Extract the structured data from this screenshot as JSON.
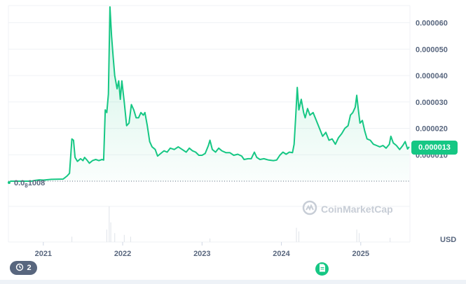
{
  "colors": {
    "line": "#16c784",
    "grid": "#eff2f5",
    "text": "#58667e",
    "volume": "#dfe3e9",
    "dotted": "#58667e"
  },
  "chart_data": {
    "type": "area",
    "currency_label": "USD",
    "current_price_label": "0.000013",
    "start_label": {
      "prefix": "0.0",
      "subscript": "8",
      "suffix": "1008"
    },
    "y_ticks": [
      "0.000060",
      "0.000050",
      "0.000040",
      "0.000030",
      "0.000020",
      "0.000010"
    ],
    "y_tick_values": [
      6e-05,
      5e-05,
      4e-05,
      3e-05,
      2e-05,
      1e-05
    ],
    "x_ticks": [
      "2021",
      "2022",
      "2023",
      "2024",
      "2025"
    ],
    "x_tick_values": [
      2021.0,
      2022.0,
      2023.0,
      2024.0,
      2025.0
    ],
    "xlim": [
      2020.56,
      2025.62
    ],
    "ylim": [
      0,
      6.65e-05
    ],
    "dotted_reference_value": 0.0,
    "series": [
      {
        "values": [
          [
            2020.58,
            0.0
          ],
          [
            2020.85,
            0.0
          ],
          [
            2020.9,
            3e-07
          ],
          [
            2020.95,
            5e-07
          ],
          [
            2021.0,
            4e-07
          ],
          [
            2021.1,
            7e-07
          ],
          [
            2021.25,
            8e-07
          ],
          [
            2021.3,
            2e-06
          ],
          [
            2021.33,
            3e-06
          ],
          [
            2021.36,
            1.6e-05
          ],
          [
            2021.38,
            1.55e-05
          ],
          [
            2021.4,
            9e-06
          ],
          [
            2021.43,
            7.5e-06
          ],
          [
            2021.47,
            8.5e-06
          ],
          [
            2021.5,
            7.8e-06
          ],
          [
            2021.52,
            9e-06
          ],
          [
            2021.55,
            8e-06
          ],
          [
            2021.58,
            6.8e-06
          ],
          [
            2021.62,
            7.8e-06
          ],
          [
            2021.66,
            8.2e-06
          ],
          [
            2021.7,
            7.8e-06
          ],
          [
            2021.74,
            8.2e-06
          ],
          [
            2021.76,
            8e-06
          ],
          [
            2021.78,
            2.7e-05
          ],
          [
            2021.8,
            2.6e-05
          ],
          [
            2021.82,
            3.3e-05
          ],
          [
            2021.84,
            6.6e-05
          ],
          [
            2021.86,
            5.5e-05
          ],
          [
            2021.88,
            4.7e-05
          ],
          [
            2021.9,
            4e-05
          ],
          [
            2021.93,
            3.5e-05
          ],
          [
            2021.95,
            3.8e-05
          ],
          [
            2021.97,
            3.1e-05
          ],
          [
            2021.99,
            3.8e-05
          ],
          [
            2022.02,
            3e-05
          ],
          [
            2022.05,
            2.1e-05
          ],
          [
            2022.08,
            2.2e-05
          ],
          [
            2022.11,
            2.9e-05
          ],
          [
            2022.14,
            2.7e-05
          ],
          [
            2022.17,
            2.4e-05
          ],
          [
            2022.2,
            2.4e-05
          ],
          [
            2022.23,
            2.6e-05
          ],
          [
            2022.26,
            2.5e-05
          ],
          [
            2022.28,
            2.6e-05
          ],
          [
            2022.31,
            2.1e-05
          ],
          [
            2022.34,
            1.5e-05
          ],
          [
            2022.37,
            1.3e-05
          ],
          [
            2022.41,
            1.2e-05
          ],
          [
            2022.44,
            9.5e-06
          ],
          [
            2022.48,
            1.05e-05
          ],
          [
            2022.52,
            1.15e-05
          ],
          [
            2022.56,
            1.1e-05
          ],
          [
            2022.6,
            1.25e-05
          ],
          [
            2022.65,
            1.2e-05
          ],
          [
            2022.7,
            1.3e-05
          ],
          [
            2022.75,
            1.2e-05
          ],
          [
            2022.8,
            1.1e-05
          ],
          [
            2022.84,
            1.25e-05
          ],
          [
            2022.88,
            1.15e-05
          ],
          [
            2022.92,
            1.1e-05
          ],
          [
            2022.96,
            9.8e-06
          ],
          [
            2023.0,
            9.8e-06
          ],
          [
            2023.04,
            1.05e-05
          ],
          [
            2023.08,
            1.35e-05
          ],
          [
            2023.1,
            1.55e-05
          ],
          [
            2023.13,
            1.2e-05
          ],
          [
            2023.17,
            1.1e-05
          ],
          [
            2023.21,
            1.25e-05
          ],
          [
            2023.25,
            1.15e-05
          ],
          [
            2023.3,
            1.08e-05
          ],
          [
            2023.35,
            1.08e-05
          ],
          [
            2023.4,
            9.8e-06
          ],
          [
            2023.45,
            1.02e-05
          ],
          [
            2023.5,
            9.5e-06
          ],
          [
            2023.53,
            8.2e-06
          ],
          [
            2023.58,
            8.5e-06
          ],
          [
            2023.62,
            8.5e-06
          ],
          [
            2023.66,
            1.1e-05
          ],
          [
            2023.69,
            9e-06
          ],
          [
            2023.73,
            8.2e-06
          ],
          [
            2023.78,
            8.5e-06
          ],
          [
            2023.84,
            8e-06
          ],
          [
            2023.9,
            7.8e-06
          ],
          [
            2023.94,
            8e-06
          ],
          [
            2023.98,
            9.8e-06
          ],
          [
            2024.02,
            1.1e-05
          ],
          [
            2024.06,
            1.02e-05
          ],
          [
            2024.1,
            1.1e-05
          ],
          [
            2024.14,
            1.08e-05
          ],
          [
            2024.16,
            1.4e-05
          ],
          [
            2024.18,
            2.4e-05
          ],
          [
            2024.2,
            3.55e-05
          ],
          [
            2024.22,
            2.7e-05
          ],
          [
            2024.25,
            3.1e-05
          ],
          [
            2024.28,
            2.6e-05
          ],
          [
            2024.3,
            2.4e-05
          ],
          [
            2024.33,
            2.75e-05
          ],
          [
            2024.36,
            2.5e-05
          ],
          [
            2024.4,
            2.6e-05
          ],
          [
            2024.44,
            2.3e-05
          ],
          [
            2024.48,
            2e-05
          ],
          [
            2024.52,
            1.7e-05
          ],
          [
            2024.56,
            1.85e-05
          ],
          [
            2024.6,
            1.55e-05
          ],
          [
            2024.64,
            1.6e-05
          ],
          [
            2024.68,
            1.4e-05
          ],
          [
            2024.72,
            1.65e-05
          ],
          [
            2024.76,
            1.8e-05
          ],
          [
            2024.8,
            2e-05
          ],
          [
            2024.84,
            2.1e-05
          ],
          [
            2024.87,
            2.5e-05
          ],
          [
            2024.9,
            2.6e-05
          ],
          [
            2024.93,
            2.8e-05
          ],
          [
            2024.95,
            3.25e-05
          ],
          [
            2024.97,
            2.7e-05
          ],
          [
            2024.99,
            2.2e-05
          ],
          [
            2025.02,
            2.3e-05
          ],
          [
            2025.05,
            1.9e-05
          ],
          [
            2025.08,
            1.6e-05
          ],
          [
            2025.12,
            1.55e-05
          ],
          [
            2025.16,
            1.4e-05
          ],
          [
            2025.2,
            1.35e-05
          ],
          [
            2025.24,
            1.3e-05
          ],
          [
            2025.28,
            1.35e-05
          ],
          [
            2025.32,
            1.25e-05
          ],
          [
            2025.36,
            1.4e-05
          ],
          [
            2025.38,
            1.7e-05
          ],
          [
            2025.41,
            1.45e-05
          ],
          [
            2025.45,
            1.35e-05
          ],
          [
            2025.49,
            1.2e-05
          ],
          [
            2025.53,
            1.35e-05
          ],
          [
            2025.56,
            1.5e-05
          ],
          [
            2025.59,
            1.22e-05
          ],
          [
            2025.61,
            1.3e-05
          ]
        ]
      }
    ],
    "volume_bars": [
      [
        2021.36,
        0.15
      ],
      [
        2021.8,
        0.35
      ],
      [
        2021.83,
        1.0
      ],
      [
        2021.85,
        0.55
      ],
      [
        2021.9,
        0.25
      ],
      [
        2022.02,
        0.2
      ],
      [
        2022.1,
        0.15
      ],
      [
        2023.1,
        0.1
      ],
      [
        2024.19,
        0.4
      ],
      [
        2024.22,
        0.3
      ],
      [
        2024.95,
        0.35
      ],
      [
        2024.98,
        0.25
      ],
      [
        2025.37,
        0.12
      ]
    ]
  },
  "watermark": {
    "text": "CoinMarketCap",
    "icon": "coinmarketcap-logo-icon"
  },
  "history_button": {
    "count": "2",
    "icon": "history-icon"
  },
  "note_button": {
    "icon": "document-icon"
  }
}
